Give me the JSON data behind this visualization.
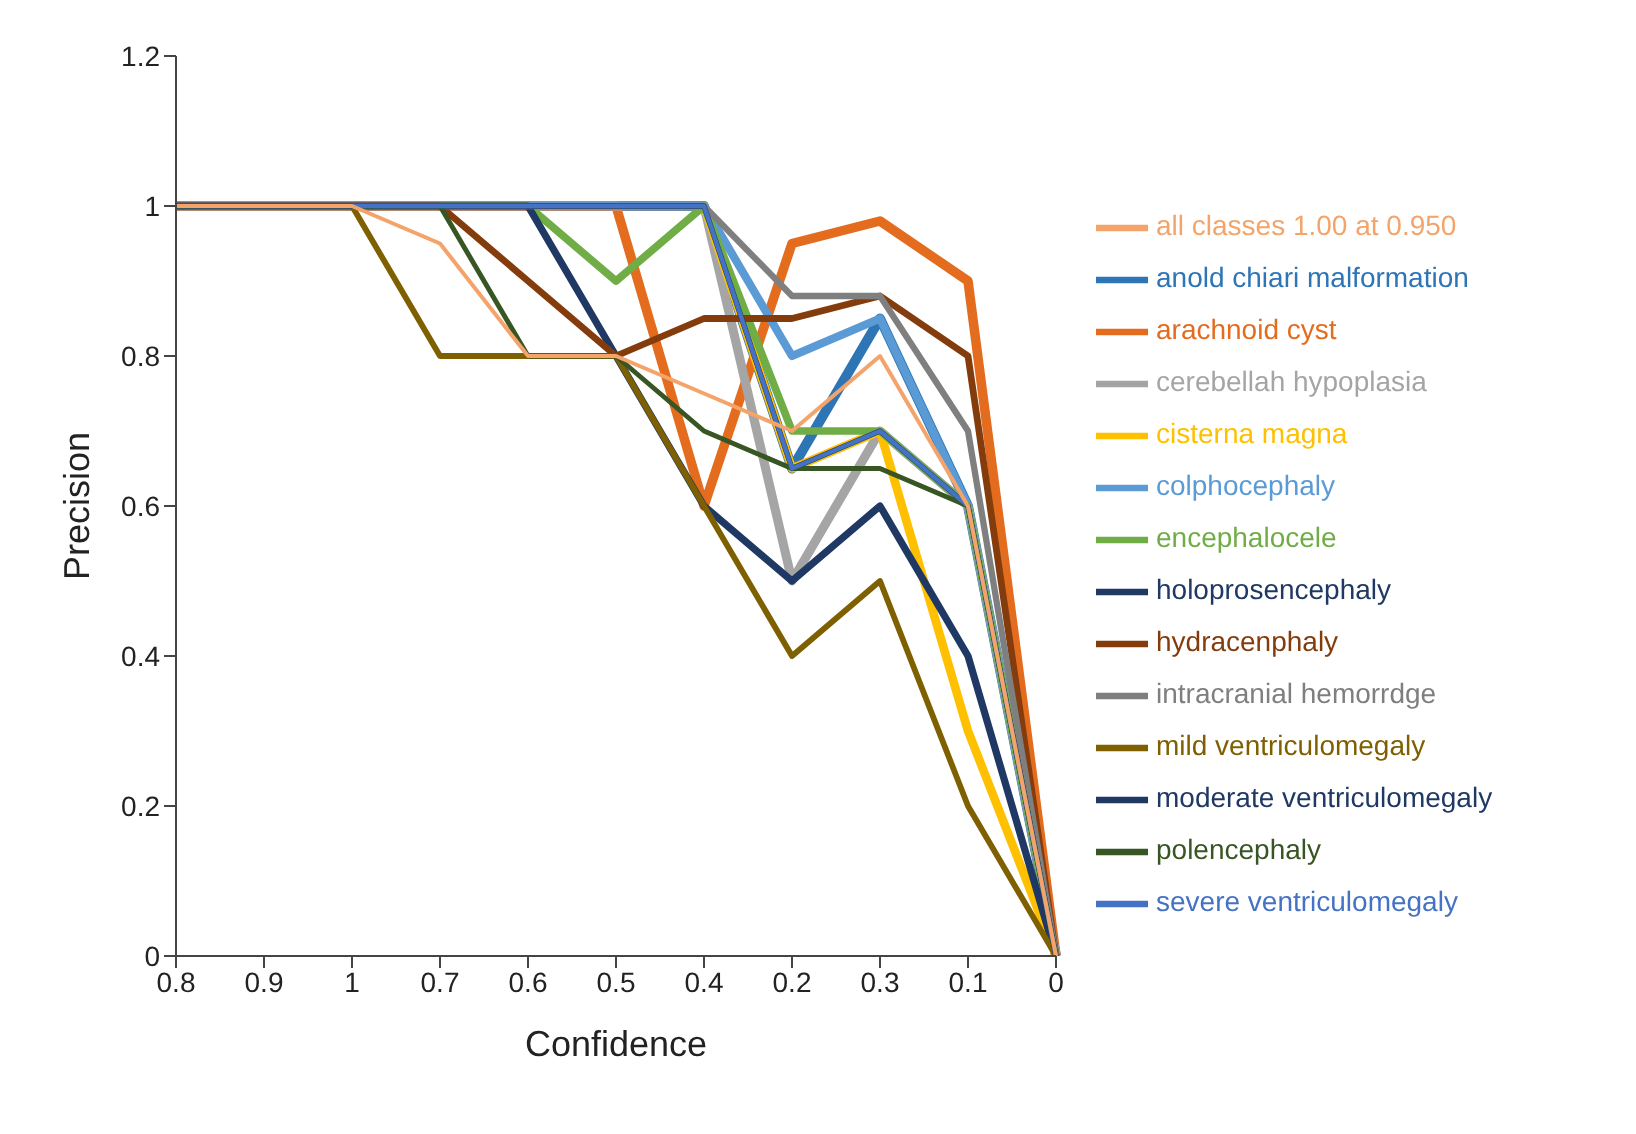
{
  "chart_data": {
    "type": "line",
    "xlabel": "Confidence",
    "ylabel": "Precision",
    "categories": [
      "0.8",
      "0.9",
      "1",
      "0.7",
      "0.6",
      "0.5",
      "0.4",
      "0.2",
      "0.3",
      "0.1",
      "0"
    ],
    "ylim": [
      0,
      1.2
    ],
    "yticks": [
      0,
      0.2,
      0.4,
      0.6,
      0.8,
      1,
      1.2
    ],
    "grid": false,
    "legend": "right",
    "marker": "none",
    "line_style": "solid",
    "series": [
      {
        "name": "anold chiari malformation",
        "color": "#2e75b6",
        "values": [
          1,
          1,
          1,
          1,
          1,
          1,
          1,
          0.65,
          0.85,
          0.6,
          0
        ]
      },
      {
        "name": "arachnoid cyst",
        "color": "#e36c1f",
        "values": [
          1,
          1,
          1,
          1,
          1,
          1,
          0.6,
          0.95,
          0.98,
          0.9,
          0
        ]
      },
      {
        "name": "cerebellah hypoplasia",
        "color": "#a5a5a5",
        "values": [
          1,
          1,
          1,
          1,
          1,
          1,
          1,
          0.5,
          0.7,
          0.6,
          0
        ]
      },
      {
        "name": "cisterna magna",
        "color": "#ffc000",
        "values": [
          null,
          null,
          null,
          null,
          null,
          null,
          1,
          0.65,
          0.7,
          0.3,
          0
        ]
      },
      {
        "name": "colphocephaly",
        "color": "#5b9bd5",
        "values": [
          1,
          1,
          1,
          1,
          1,
          1,
          1,
          0.8,
          0.85,
          0.6,
          0
        ]
      },
      {
        "name": "encephalocele",
        "color": "#70ad47",
        "values": [
          null,
          null,
          null,
          1,
          1,
          0.9,
          1,
          0.7,
          0.7,
          0.6,
          0
        ]
      },
      {
        "name": "holoprosencephaly",
        "color": "#1f3864",
        "values": [
          1,
          1,
          1,
          1,
          1,
          0.8,
          0.6,
          0.5,
          0.6,
          0.4,
          0
        ]
      },
      {
        "name": "hydracenphaly",
        "color": "#843c0c",
        "values": [
          1,
          1,
          1,
          1,
          0.9,
          0.8,
          0.85,
          0.85,
          0.88,
          0.8,
          0
        ]
      },
      {
        "name": "intracranial hemorrdge",
        "color": "#7f7f7f",
        "values": [
          1,
          1,
          1,
          1,
          1,
          1,
          1,
          0.88,
          0.88,
          0.7,
          0
        ]
      },
      {
        "name": "mild ventriculomegaly",
        "color": "#7f6000",
        "values": [
          1,
          1,
          1,
          0.8,
          0.8,
          0.8,
          0.6,
          0.4,
          0.5,
          0.2,
          0
        ]
      },
      {
        "name": "moderate ventriculomegaly",
        "color": "#203864",
        "values": [
          1,
          1,
          1,
          1,
          1,
          1,
          1,
          0.65,
          0.7,
          0.6,
          0
        ]
      },
      {
        "name": "polencephaly",
        "color": "#375623",
        "values": [
          1,
          1,
          1,
          1,
          0.8,
          0.8,
          0.7,
          0.65,
          0.65,
          0.6,
          0
        ]
      },
      {
        "name": "severe ventriculomegaly",
        "color": "#4472c4",
        "values": [
          1,
          1,
          1,
          1,
          1,
          1,
          1,
          0.65,
          0.7,
          0.6,
          0
        ]
      },
      {
        "name": "all classes 1.00 at 0.950",
        "color": "#f4a46a",
        "values": [
          1,
          1,
          1,
          0.95,
          0.8,
          0.8,
          0.75,
          0.7,
          0.8,
          0.6,
          0
        ]
      }
    ]
  }
}
